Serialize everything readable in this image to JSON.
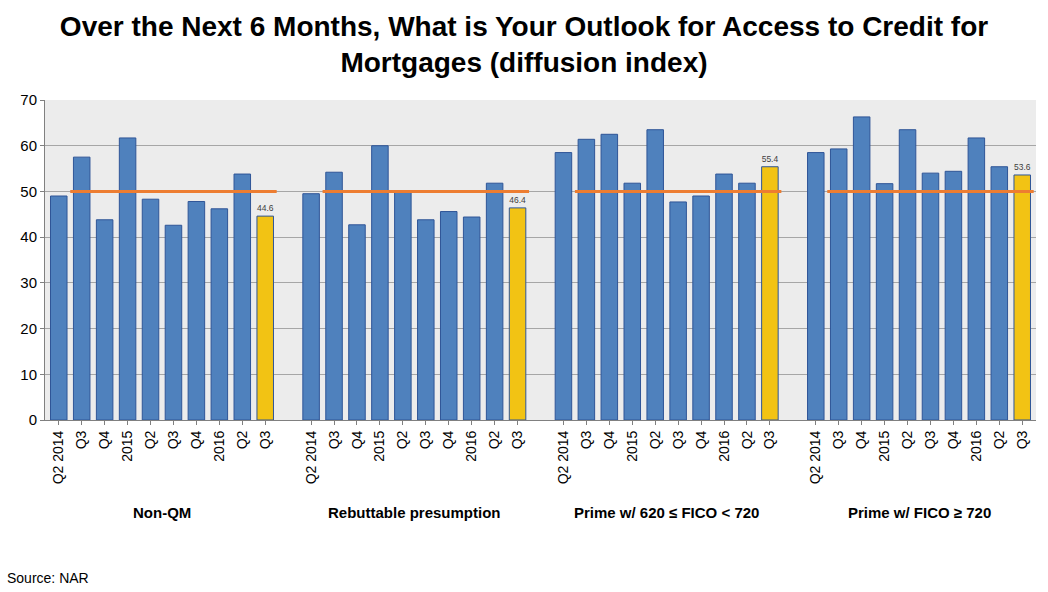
{
  "chart_data": {
    "type": "bar",
    "title": "Over the Next 6 Months, What is Your Outlook for Access to Credit for Mortgages (diffusion index)",
    "source": "Source: NAR",
    "ylim": [
      0,
      70
    ],
    "yticks": [
      0,
      10,
      20,
      30,
      40,
      50,
      60,
      70
    ],
    "grid": true,
    "reference_line": {
      "value": 50,
      "color": "#ed7d31"
    },
    "groups": [
      {
        "name": "Non-QM",
        "categories": [
          "Q2 2014",
          "Q3",
          "Q4",
          "2015",
          "Q2",
          "Q3",
          "Q4",
          "2016",
          "Q2",
          "Q3"
        ],
        "values": [
          49,
          57.5,
          43.8,
          61.7,
          48.3,
          42.6,
          47.8,
          46.2,
          53.8,
          44.6
        ],
        "colors": [
          "#4f81bd",
          "#4f81bd",
          "#4f81bd",
          "#4f81bd",
          "#4f81bd",
          "#4f81bd",
          "#4f81bd",
          "#4f81bd",
          "#4f81bd",
          "#f2c314"
        ],
        "value_labels": [
          null,
          null,
          null,
          null,
          null,
          null,
          null,
          null,
          null,
          "44.6"
        ]
      },
      {
        "name": "Rebuttable presumption",
        "categories": [
          "Q2 2014",
          "Q3",
          "Q4",
          "2015",
          "Q2",
          "Q3",
          "Q4",
          "2016",
          "Q2",
          "Q3"
        ],
        "values": [
          49.5,
          54.2,
          42.7,
          60,
          49.8,
          43.8,
          45.6,
          44.4,
          51.8,
          46.4
        ],
        "colors": [
          "#4f81bd",
          "#4f81bd",
          "#4f81bd",
          "#4f81bd",
          "#4f81bd",
          "#4f81bd",
          "#4f81bd",
          "#4f81bd",
          "#4f81bd",
          "#f2c314"
        ],
        "value_labels": [
          null,
          null,
          null,
          null,
          null,
          null,
          null,
          null,
          null,
          "46.4"
        ]
      },
      {
        "name": "Prime w/ 620 ≤ FICO < 720",
        "categories": [
          "Q2 2014",
          "Q3",
          "Q4",
          "2015",
          "Q2",
          "Q3",
          "Q4",
          "2016",
          "Q2",
          "Q3"
        ],
        "values": [
          58.5,
          61.4,
          62.5,
          51.8,
          63.5,
          47.7,
          49,
          53.8,
          51.8,
          55.4
        ],
        "colors": [
          "#4f81bd",
          "#4f81bd",
          "#4f81bd",
          "#4f81bd",
          "#4f81bd",
          "#4f81bd",
          "#4f81bd",
          "#4f81bd",
          "#4f81bd",
          "#f2c314"
        ],
        "value_labels": [
          null,
          null,
          null,
          null,
          null,
          null,
          null,
          null,
          null,
          "55.4"
        ]
      },
      {
        "name": "Prime w/ FICO ≥ 720",
        "categories": [
          "Q2 2014",
          "Q3",
          "Q4",
          "2015",
          "Q2",
          "Q3",
          "Q4",
          "2016",
          "Q2",
          "Q3"
        ],
        "values": [
          58.5,
          59.3,
          66.3,
          51.7,
          63.5,
          54,
          54.4,
          61.7,
          55.4,
          53.6
        ],
        "colors": [
          "#4f81bd",
          "#4f81bd",
          "#4f81bd",
          "#4f81bd",
          "#4f81bd",
          "#4f81bd",
          "#4f81bd",
          "#4f81bd",
          "#4f81bd",
          "#f2c314"
        ],
        "value_labels": [
          null,
          null,
          null,
          null,
          null,
          null,
          null,
          null,
          null,
          "53.6"
        ]
      }
    ]
  }
}
